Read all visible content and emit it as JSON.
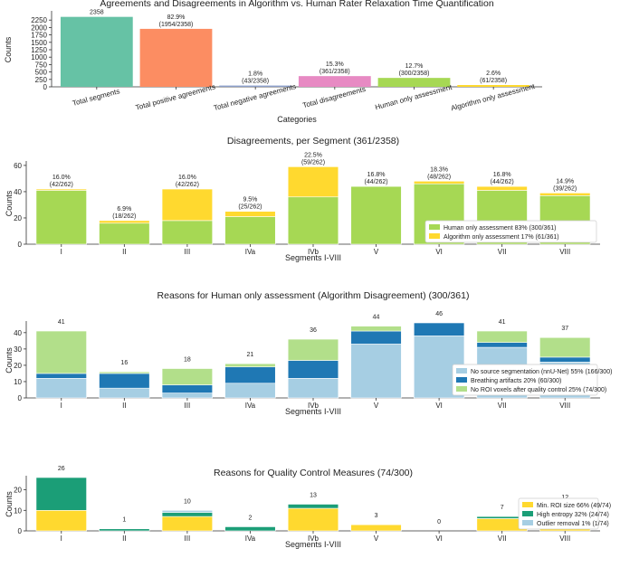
{
  "chart_data": [
    {
      "type": "bar",
      "title": "Agreements and Disagreements in Algorithm vs. Human Rater Relaxation Time Quantification",
      "xlabel": "Categories",
      "ylabel": "Counts",
      "ylim": [
        0,
        2500
      ],
      "yticks": [
        0,
        250,
        500,
        750,
        1000,
        1250,
        1500,
        1750,
        2000,
        2250
      ],
      "categories": [
        "Total segments",
        "Total positive agreements",
        "Total negative agreements",
        "Total disagreements",
        "Human only assessment",
        "Algorithm only assessment"
      ],
      "values": [
        2358,
        1954,
        43,
        361,
        300,
        61
      ],
      "colors": [
        "#66c2a5",
        "#fc8d62",
        "#8da0cb",
        "#e78ac3",
        "#a6d854",
        "#ffd92f"
      ],
      "labels": [
        [
          "2358"
        ],
        [
          "82.9%",
          "(1954/2358)"
        ],
        [
          "1.8%",
          "(43/2358)"
        ],
        [
          "15.3%",
          "(361/2358)"
        ],
        [
          "12.7%",
          "(300/2358)"
        ],
        [
          "2.6%",
          "(61/2358)"
        ]
      ],
      "grid": false
    },
    {
      "type": "bar",
      "stacked": true,
      "title": "Disagreements, per Segment (361/2358)",
      "xlabel": "Segments I-VIII",
      "ylabel": "Counts",
      "ylim": [
        0,
        62
      ],
      "yticks": [
        0,
        20,
        40,
        60
      ],
      "categories": [
        "I",
        "II",
        "III",
        "IVa",
        "IVb",
        "V",
        "VI",
        "VII",
        "VIII"
      ],
      "series": [
        {
          "name": "Human only assessment 83% (300/361)",
          "color": "#a6d854",
          "values": [
            41,
            16,
            18,
            21,
            36,
            44,
            46,
            41,
            37
          ]
        },
        {
          "name": "Algorithm only assessment 17% (61/361)",
          "color": "#ffd92f",
          "values": [
            1,
            2,
            24,
            4,
            23,
            0,
            2,
            3,
            2
          ]
        }
      ],
      "labels": [
        [
          "16.0%",
          "(42/262)"
        ],
        [
          "6.9%",
          "(18/262)"
        ],
        [
          "16.0%",
          "(42/262)"
        ],
        [
          "9.5%",
          "(25/262)"
        ],
        [
          "22.5%",
          "(59/262)"
        ],
        [
          "16.8%",
          "(44/262)"
        ],
        [
          "18.3%",
          "(48/262)"
        ],
        [
          "16.8%",
          "(44/262)"
        ],
        [
          "14.9%",
          "(39/262)"
        ]
      ],
      "legend": "lower-right",
      "grid": false
    },
    {
      "type": "bar",
      "stacked": true,
      "title": "Reasons for Human only assessment (Algorithm Disagreement) (300/361)",
      "xlabel": "Segments I-VIII",
      "ylabel": "Counts",
      "ylim": [
        0,
        46
      ],
      "yticks": [
        0,
        10,
        20,
        30,
        40
      ],
      "categories": [
        "I",
        "II",
        "III",
        "IVa",
        "IVb",
        "V",
        "VI",
        "VII",
        "VIII"
      ],
      "series": [
        {
          "name": "No source segmentation (nnU-Net) 55% (166/300)",
          "color": "#a6cee3",
          "values": [
            12,
            6,
            3,
            9,
            12,
            33,
            38,
            31,
            22
          ]
        },
        {
          "name": "Breathing artifacts 20% (60/300)",
          "color": "#1f78b4",
          "values": [
            3,
            9,
            5,
            10,
            11,
            8,
            8,
            3,
            3
          ]
        },
        {
          "name": "No ROI voxels after quality control 25% (74/300)",
          "color": "#b2df8a",
          "values": [
            26,
            1,
            10,
            2,
            13,
            3,
            0,
            7,
            12
          ]
        }
      ],
      "labels": [
        [
          "41"
        ],
        [
          "16"
        ],
        [
          "18"
        ],
        [
          "21"
        ],
        [
          "36"
        ],
        [
          "44"
        ],
        [
          "46"
        ],
        [
          "41"
        ],
        [
          "37"
        ]
      ],
      "legend": "lower-right",
      "grid": false
    },
    {
      "type": "bar",
      "stacked": true,
      "title": "Reasons for Quality Control Measures (74/300)",
      "xlabel": "Segments I-VIII",
      "ylabel": "Counts",
      "ylim": [
        0,
        26
      ],
      "yticks": [
        0,
        10,
        20
      ],
      "categories": [
        "I",
        "II",
        "III",
        "IVa",
        "IVb",
        "V",
        "VI",
        "VII",
        "VIII"
      ],
      "series": [
        {
          "name": "Min. ROI size 66% (49/74)",
          "color": "#ffd92f",
          "values": [
            10,
            0,
            7,
            0,
            11,
            3,
            0,
            6,
            12
          ]
        },
        {
          "name": "High entropy 32% (24/74)",
          "color": "#1b9e77",
          "values": [
            16,
            1,
            2,
            2,
            2,
            0,
            0,
            1,
            0
          ]
        },
        {
          "name": "Outlier removal 1% (1/74)",
          "color": "#a6cee3",
          "values": [
            0,
            0,
            1,
            0,
            0,
            0,
            0,
            0,
            0
          ]
        }
      ],
      "labels": [
        [
          "26"
        ],
        [
          "1"
        ],
        [
          "10"
        ],
        [
          "2"
        ],
        [
          "13"
        ],
        [
          "3"
        ],
        [
          "0"
        ],
        [
          "7"
        ],
        [
          "12"
        ]
      ],
      "legend": "lower-right",
      "grid": false
    }
  ]
}
